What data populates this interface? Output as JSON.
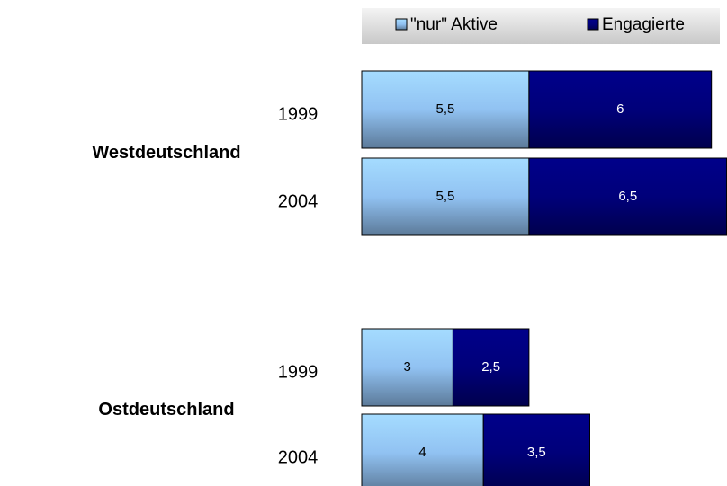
{
  "chart_data": {
    "type": "stacked-barh",
    "groups": [
      {
        "label": "Westdeutschland",
        "categories": [
          "1999",
          "2004"
        ]
      },
      {
        "label": "Ostdeutschland",
        "categories": [
          "1999",
          "2004"
        ]
      }
    ],
    "series": [
      {
        "name": "\"nur\" Aktive",
        "color": "#99ccff",
        "values": [
          5.5,
          5.5,
          3,
          4
        ],
        "value_labels": [
          "5,5",
          "5,5",
          "3",
          "4"
        ]
      },
      {
        "name": "Engagierte",
        "color": "#000080",
        "values": [
          6,
          6.5,
          2.5,
          3.5
        ],
        "value_labels": [
          "6",
          "6,5",
          "2,5",
          "3,5"
        ]
      }
    ]
  }
}
